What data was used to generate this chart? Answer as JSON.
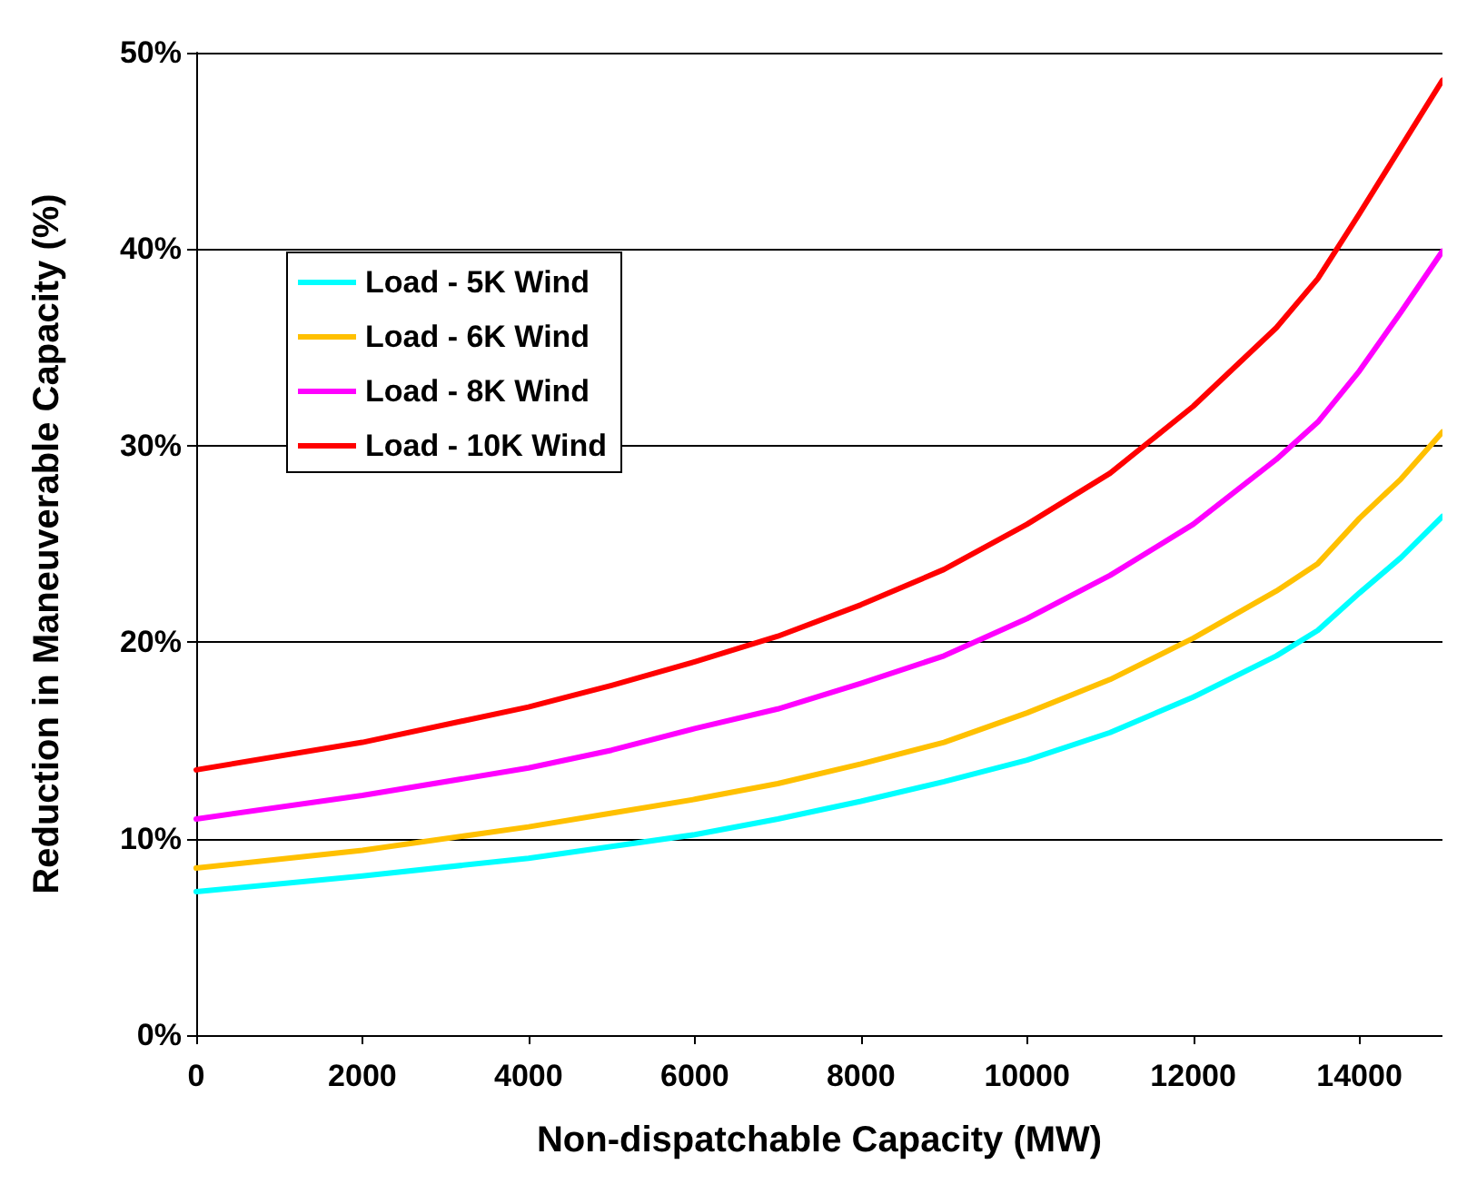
{
  "chart_data": {
    "type": "line",
    "xlabel": "Non-dispatchable Capacity (MW)",
    "ylabel": "Reduction in Maneuverable Capacity (%)",
    "x": [
      0,
      2000,
      4000,
      5000,
      6000,
      7000,
      8000,
      9000,
      10000,
      11000,
      12000,
      13000,
      13500,
      14000,
      14500,
      15000
    ],
    "series": [
      {
        "name": "Load - 5K Wind",
        "color": "#00ffff",
        "values": [
          7.3,
          8.1,
          9.0,
          9.6,
          10.2,
          11.0,
          11.9,
          12.9,
          14.0,
          15.4,
          17.2,
          19.3,
          20.6,
          22.5,
          24.3,
          26.4
        ]
      },
      {
        "name": "Load - 6K Wind",
        "color": "#ffc000",
        "values": [
          8.5,
          9.4,
          10.6,
          11.3,
          12.0,
          12.8,
          13.8,
          14.9,
          16.4,
          18.1,
          20.2,
          22.6,
          24.0,
          26.3,
          28.3,
          30.7
        ]
      },
      {
        "name": "Load - 8K Wind",
        "color": "#ff00ff",
        "values": [
          11.0,
          12.2,
          13.6,
          14.5,
          15.6,
          16.6,
          17.9,
          19.3,
          21.2,
          23.4,
          26.0,
          29.3,
          31.2,
          33.8,
          36.8,
          39.9
        ]
      },
      {
        "name": "Load - 10K Wind",
        "color": "#ff0000",
        "values": [
          13.5,
          14.9,
          16.7,
          17.8,
          19.0,
          20.3,
          21.9,
          23.7,
          26.0,
          28.6,
          32.0,
          36.0,
          38.5,
          41.8,
          45.2,
          48.6
        ]
      }
    ],
    "xlim": [
      0,
      15000
    ],
    "xticks": [
      0,
      2000,
      4000,
      6000,
      8000,
      10000,
      12000,
      14000
    ],
    "ylim": [
      0,
      50
    ],
    "yticks": [
      {
        "value": 0,
        "label": "0%"
      },
      {
        "value": 10,
        "label": "10%"
      },
      {
        "value": 20,
        "label": "20%"
      },
      {
        "value": 30,
        "label": "30%"
      },
      {
        "value": 40,
        "label": "40%"
      },
      {
        "value": 50,
        "label": "50%"
      }
    ],
    "grid": "y",
    "legend": "top left",
    "marker": "none",
    "line_style": "solid"
  }
}
